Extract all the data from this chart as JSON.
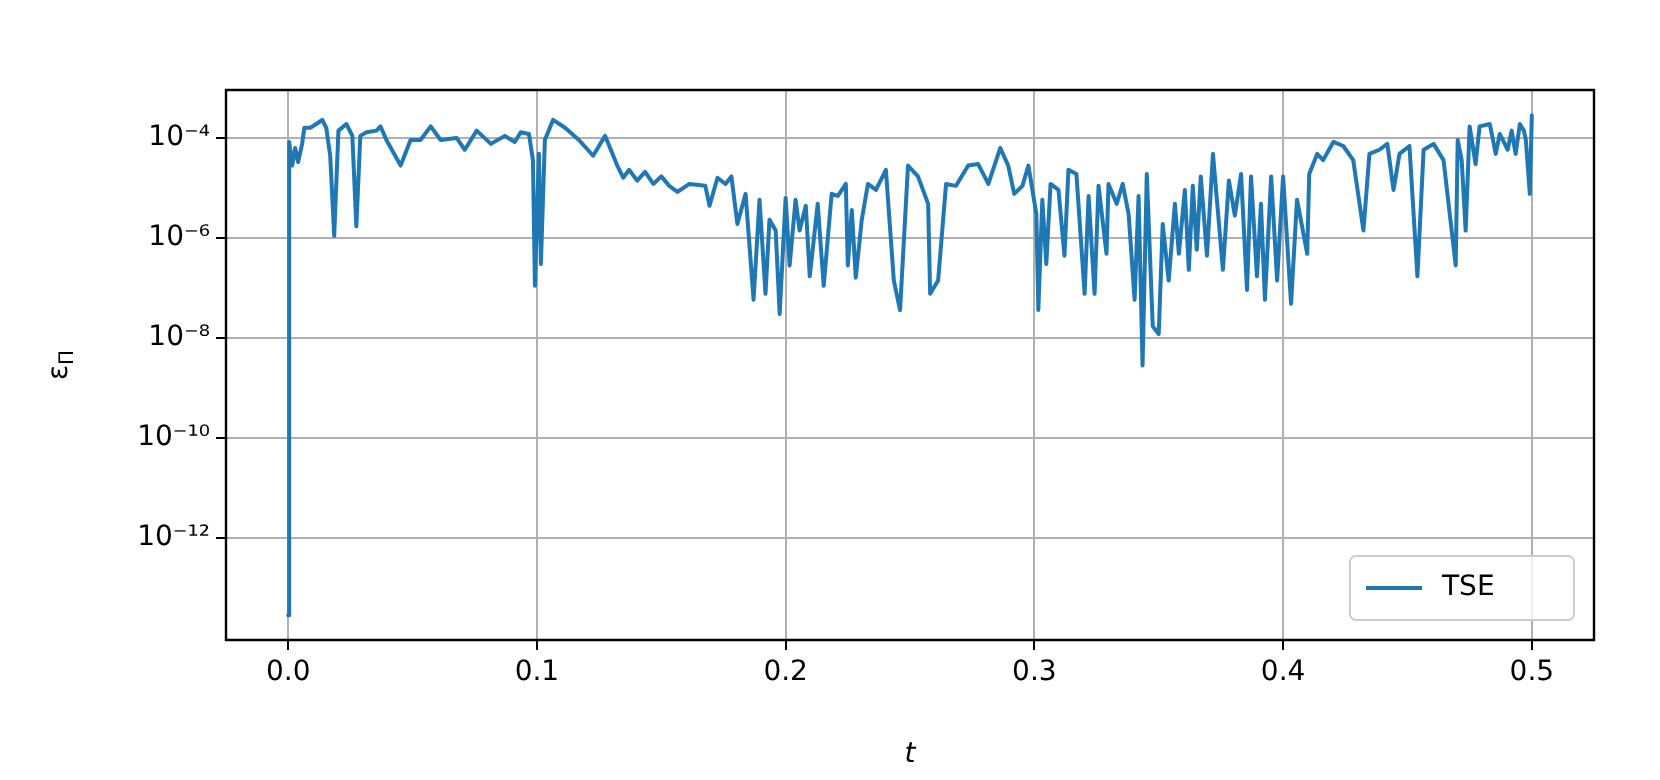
{
  "chart_data": {
    "type": "line",
    "xlabel": "t",
    "ylabel": "ε$_{Π}$",
    "log": "y",
    "grid": true,
    "legend": "bottom right",
    "marker": "none",
    "line_style": "solid",
    "xlim": [
      -0.025,
      0.525
    ],
    "xticks": [
      {
        "value": 0,
        "label": "0.0"
      },
      0.1,
      0.2,
      0.3,
      0.4,
      0.5
    ],
    "ylim": [
      9.1e-15,
      0.00091
    ],
    "yticks": [
      {
        "value": 1e-12,
        "label": "10⁻¹²"
      },
      {
        "value": 1e-10,
        "label": "10⁻¹⁰"
      },
      {
        "value": 1e-08,
        "label": "10⁻⁸"
      },
      {
        "value": 1e-06,
        "label": "10⁻⁶"
      },
      {
        "value": 0.0001,
        "label": "10⁻⁴"
      }
    ],
    "series": [
      {
        "name": "TSE",
        "color": "#1f77b4",
        "x": [
          0,
          0.0004,
          0.0016,
          0.0028,
          0.004,
          0.0056,
          0.0065,
          0.0089,
          0.0113,
          0.0137,
          0.0153,
          0.0169,
          0.0185,
          0.0202,
          0.0234,
          0.0258,
          0.0274,
          0.029,
          0.0315,
          0.0355,
          0.0371,
          0.0395,
          0.0452,
          0.0492,
          0.0532,
          0.0573,
          0.0613,
          0.0677,
          0.071,
          0.0758,
          0.0815,
          0.0871,
          0.0911,
          0.0935,
          0.0968,
          0.0984,
          0.0992,
          0.1008,
          0.1016,
          0.1032,
          0.1065,
          0.1113,
          0.1169,
          0.1226,
          0.1274,
          0.1323,
          0.1347,
          0.1371,
          0.1403,
          0.1435,
          0.1468,
          0.15,
          0.1532,
          0.1565,
          0.1613,
          0.1677,
          0.1694,
          0.1726,
          0.1758,
          0.1782,
          0.1806,
          0.1839,
          0.1871,
          0.1895,
          0.1919,
          0.1935,
          0.196,
          0.1976,
          0.2,
          0.2016,
          0.204,
          0.2056,
          0.2081,
          0.2097,
          0.2129,
          0.2153,
          0.2185,
          0.221,
          0.2242,
          0.225,
          0.2266,
          0.2282,
          0.2306,
          0.2331,
          0.2363,
          0.2403,
          0.2435,
          0.246,
          0.2492,
          0.2532,
          0.2573,
          0.2581,
          0.2613,
          0.2645,
          0.2685,
          0.2734,
          0.2774,
          0.2815,
          0.2863,
          0.2895,
          0.2919,
          0.2952,
          0.2976,
          0.3008,
          0.3016,
          0.3032,
          0.3048,
          0.3065,
          0.3097,
          0.3121,
          0.3137,
          0.3169,
          0.3202,
          0.3218,
          0.3242,
          0.3258,
          0.329,
          0.3298,
          0.3331,
          0.3355,
          0.3379,
          0.3403,
          0.3419,
          0.3435,
          0.3452,
          0.3476,
          0.35,
          0.3516,
          0.354,
          0.3565,
          0.3581,
          0.3605,
          0.3621,
          0.3637,
          0.3653,
          0.3669,
          0.3694,
          0.3718,
          0.3758,
          0.3782,
          0.3806,
          0.3831,
          0.3855,
          0.3871,
          0.3895,
          0.3911,
          0.3927,
          0.3952,
          0.3976,
          0.4,
          0.4032,
          0.4056,
          0.4097,
          0.4105,
          0.4137,
          0.4161,
          0.4202,
          0.4242,
          0.4282,
          0.4323,
          0.4347,
          0.4387,
          0.4419,
          0.4444,
          0.4468,
          0.4508,
          0.454,
          0.4565,
          0.4605,
          0.4645,
          0.4694,
          0.4702,
          0.4718,
          0.4734,
          0.475,
          0.4774,
          0.479,
          0.4831,
          0.4855,
          0.4871,
          0.4903,
          0.4919,
          0.4935,
          0.4952,
          0.4968,
          0.4976,
          0.4992,
          0.5
        ],
        "values": [
          2.8e-14,
          8.3e-05,
          2.8e-05,
          6.3e-05,
          3.3e-05,
          7.6e-05,
          0.00016,
          0.00016,
          0.00019,
          0.00023,
          0.00016,
          4.4e-05,
          1.1e-06,
          0.00014,
          0.00019,
          0.00011,
          1.7e-06,
          0.00011,
          0.00013,
          0.00014,
          0.00017,
          9.1e-05,
          2.8e-05,
          9.1e-05,
          9.1e-05,
          0.00017,
          9.1e-05,
          0.0001,
          5.8e-05,
          0.00014,
          7.6e-05,
          0.00011,
          8.3e-05,
          0.00013,
          0.00012,
          3.6e-05,
          1.1e-07,
          4.8e-05,
          3e-07,
          9.1e-05,
          0.00023,
          0.00016,
          9.1e-05,
          4.4e-05,
          0.00011,
          2.8e-05,
          1.6e-05,
          2.3e-05,
          1.4e-05,
          2.1e-05,
          1.2e-05,
          1.7e-05,
          1.1e-05,
          8.3e-06,
          1.2e-05,
          1.1e-05,
          4.4e-06,
          1.6e-05,
          1.2e-05,
          1.7e-05,
          1.9e-06,
          7.6e-06,
          5.8e-08,
          5.8e-06,
          7.6e-08,
          2.3e-06,
          1.4e-06,
          3e-08,
          6.3e-06,
          2.8e-07,
          5.8e-06,
          1.4e-06,
          4.4e-06,
          1.7e-07,
          4.8e-06,
          1.1e-07,
          7.6e-06,
          6.9e-06,
          1.2e-05,
          2.8e-07,
          3.6e-06,
          1.6e-07,
          2.3e-06,
          1.2e-05,
          9.1e-06,
          2.3e-05,
          1.4e-07,
          3.6e-08,
          2.8e-05,
          1.7e-05,
          4.8e-06,
          7.6e-08,
          1.4e-07,
          1.2e-05,
          1.1e-05,
          2.8e-05,
          3e-05,
          1.2e-05,
          6.3e-05,
          2.8e-05,
          7.6e-06,
          1.1e-05,
          2.8e-05,
          3e-06,
          3.6e-08,
          5.8e-06,
          3e-07,
          1.2e-05,
          9.1e-06,
          4.4e-07,
          2.3e-05,
          1.9e-05,
          7.6e-08,
          6.9e-06,
          7.6e-08,
          1.1e-05,
          4.8e-07,
          1.2e-05,
          4.8e-06,
          1.2e-05,
          3e-06,
          5.8e-08,
          6.9e-06,
          2.8e-09,
          1.9e-05,
          1.7e-08,
          1.2e-08,
          1.9e-06,
          1.4e-07,
          4.8e-06,
          4.8e-07,
          9.1e-06,
          2.3e-07,
          1.1e-05,
          5.8e-07,
          1.7e-05,
          4.4e-07,
          4.8e-05,
          2.3e-07,
          1.4e-05,
          2.8e-06,
          1.9e-05,
          9.1e-08,
          1.7e-05,
          1.7e-07,
          4.8e-06,
          5.8e-08,
          1.7e-05,
          1.4e-07,
          1.7e-05,
          4.8e-08,
          5.8e-06,
          4.8e-07,
          1.9e-05,
          4.8e-05,
          3.6e-05,
          8.3e-05,
          6.9e-05,
          3.6e-05,
          1.4e-06,
          4.8e-05,
          5.8e-05,
          7.6e-05,
          9.1e-06,
          4.8e-05,
          6.9e-05,
          1.7e-07,
          5.8e-05,
          7.6e-05,
          3.6e-05,
          2.8e-07,
          9.1e-05,
          3.6e-05,
          1.4e-06,
          0.00017,
          3e-05,
          0.00017,
          0.00019,
          4.8e-05,
          0.00012,
          5.8e-05,
          0.00014,
          4.8e-05,
          0.00019,
          0.00014,
          9.1e-05,
          7.6e-06,
          0.00028
        ]
      }
    ]
  }
}
